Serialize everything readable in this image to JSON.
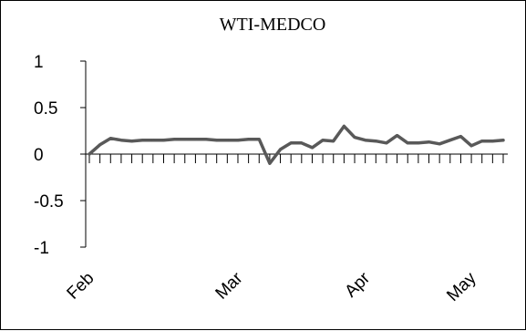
{
  "chart_data": {
    "type": "line",
    "title": "WTI-MEDCO",
    "xlabel": "",
    "ylabel": "",
    "ylim": [
      -1,
      1
    ],
    "yticks": [
      "1",
      "0.5",
      "0",
      "-0.5",
      "-1"
    ],
    "ytick_values": [
      1,
      0.5,
      0,
      -0.5,
      -1
    ],
    "x_tick_labels": [
      "Feb",
      "Mar",
      "Apr",
      "May"
    ],
    "x_tick_label_index": [
      0,
      14,
      26,
      36
    ],
    "grid": false,
    "series": [
      {
        "color": "#595959",
        "values": [
          0.0,
          0.1,
          0.17,
          0.15,
          0.14,
          0.15,
          0.15,
          0.15,
          0.16,
          0.16,
          0.16,
          0.16,
          0.15,
          0.15,
          0.15,
          0.16,
          0.16,
          -0.1,
          0.05,
          0.12,
          0.12,
          0.07,
          0.15,
          0.14,
          0.3,
          0.18,
          0.15,
          0.14,
          0.12,
          0.2,
          0.12,
          0.12,
          0.13,
          0.11,
          0.15,
          0.19,
          0.09,
          0.14,
          0.14,
          0.15
        ]
      }
    ]
  }
}
